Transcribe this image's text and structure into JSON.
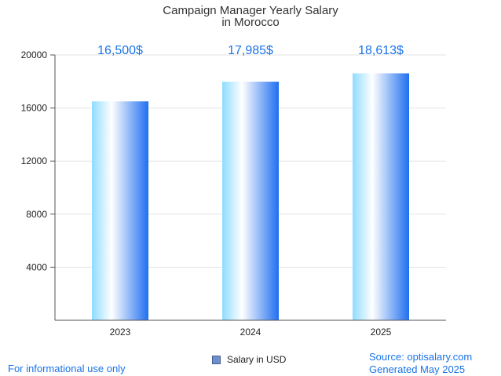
{
  "chart_data": {
    "type": "bar",
    "title_lines": [
      "Campaign Manager Yearly Salary",
      "in Morocco"
    ],
    "categories": [
      "2023",
      "2024",
      "2025"
    ],
    "series": [
      {
        "name": "Salary in USD",
        "values": [
          16500,
          17985,
          18613
        ],
        "labels": [
          "16,500$",
          "17,985$",
          "18,613$"
        ]
      }
    ],
    "y_ticks": [
      "4000",
      "8000",
      "12000",
      "16000",
      "20000"
    ],
    "ylim": [
      0,
      20000
    ],
    "grid": true,
    "legend_position": "bottom-center"
  },
  "footer": {
    "disclaimer": "For informational use only",
    "source": "Source: optisalary.com",
    "generated": "Generated May 2025"
  },
  "colors": {
    "bar_left": "#8fdcff",
    "bar_mid": "#ffffff",
    "bar_right": "#1f6ff0",
    "label": "#1a73e8"
  }
}
